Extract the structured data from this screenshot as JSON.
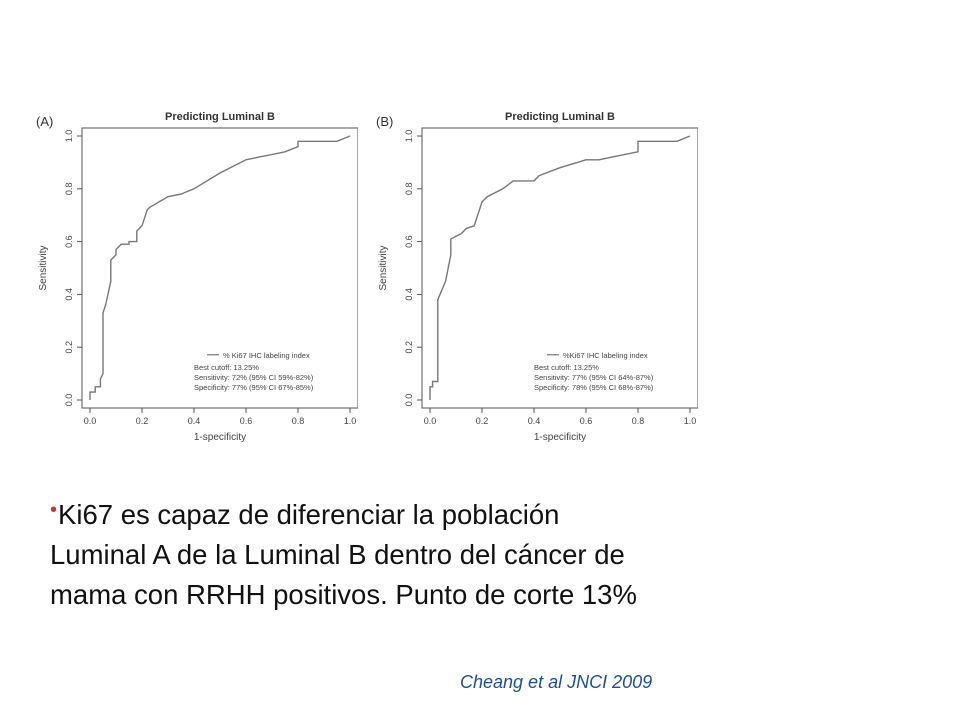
{
  "chart_data": [
    {
      "type": "line",
      "panel": "(A)",
      "title": "Predicting Luminal B",
      "xlabel": "1-specificity",
      "ylabel": "Sensitivity",
      "xlim": [
        0,
        1
      ],
      "ylim": [
        0,
        1
      ],
      "xticks": [
        "0.0",
        "0.2",
        "0.4",
        "0.6",
        "0.8",
        "1.0"
      ],
      "yticks": [
        "0.0",
        "0.2",
        "0.4",
        "0.6",
        "0.8",
        "1.0"
      ],
      "grid": false,
      "legend_position": "bottom-right",
      "legend": [
        "% Ki67 IHC labeling index"
      ],
      "annotations": [
        "Best cutoff: 13.25%",
        "Sensitivity: 72% (95% CI 59%-82%)",
        "Specificity: 77% (95% CI 67%-85%)"
      ],
      "series": [
        {
          "name": "% Ki67 IHC labeling index",
          "x": [
            0.0,
            0.0,
            0.02,
            0.02,
            0.04,
            0.04,
            0.05,
            0.05,
            0.06,
            0.08,
            0.08,
            0.1,
            0.1,
            0.12,
            0.15,
            0.15,
            0.18,
            0.18,
            0.2,
            0.22,
            0.23,
            0.3,
            0.35,
            0.4,
            0.5,
            0.6,
            0.65,
            0.7,
            0.75,
            0.8,
            0.8,
            0.95,
            1.0
          ],
          "y": [
            0.0,
            0.03,
            0.03,
            0.05,
            0.05,
            0.08,
            0.1,
            0.33,
            0.36,
            0.45,
            0.53,
            0.55,
            0.57,
            0.59,
            0.59,
            0.6,
            0.6,
            0.64,
            0.66,
            0.72,
            0.73,
            0.77,
            0.78,
            0.8,
            0.86,
            0.91,
            0.92,
            0.93,
            0.94,
            0.96,
            0.98,
            0.98,
            1.0
          ]
        }
      ]
    },
    {
      "type": "line",
      "panel": "(B)",
      "title": "Predicting Luminal B",
      "xlabel": "1-specificity",
      "ylabel": "Sensitivity",
      "xlim": [
        0,
        1
      ],
      "ylim": [
        0,
        1
      ],
      "xticks": [
        "0.0",
        "0.2",
        "0.4",
        "0.6",
        "0.8",
        "1.0"
      ],
      "yticks": [
        "0.0",
        "0.2",
        "0.4",
        "0.6",
        "0.8",
        "1.0"
      ],
      "grid": false,
      "legend_position": "bottom-right",
      "legend": [
        "%Ki67 IHC labeling index"
      ],
      "annotations": [
        "Best cutoff: 13.25%",
        "Sensitivity: 77% (95% CI 64%-87%)",
        "Specificity: 78% (95% CI 68%-87%)"
      ],
      "series": [
        {
          "name": "%Ki67 IHC labeling index",
          "x": [
            0.0,
            0.0,
            0.01,
            0.01,
            0.03,
            0.03,
            0.06,
            0.08,
            0.08,
            0.1,
            0.12,
            0.14,
            0.17,
            0.2,
            0.22,
            0.28,
            0.32,
            0.4,
            0.42,
            0.5,
            0.6,
            0.65,
            0.7,
            0.8,
            0.8,
            0.95,
            1.0
          ],
          "y": [
            0.0,
            0.05,
            0.05,
            0.07,
            0.07,
            0.38,
            0.45,
            0.55,
            0.61,
            0.62,
            0.63,
            0.65,
            0.66,
            0.75,
            0.77,
            0.8,
            0.83,
            0.83,
            0.85,
            0.88,
            0.91,
            0.91,
            0.92,
            0.94,
            0.98,
            0.98,
            1.0
          ]
        }
      ]
    }
  ],
  "caption": {
    "bullet": "•",
    "line1": "Ki67 es capaz de diferenciar la población",
    "line2": "Luminal A de la Luminal B dentro del cáncer de",
    "line3": "mama con RRHH positivos. Punto de corte 13%"
  },
  "citation": "Cheang et al JNCI 2009"
}
